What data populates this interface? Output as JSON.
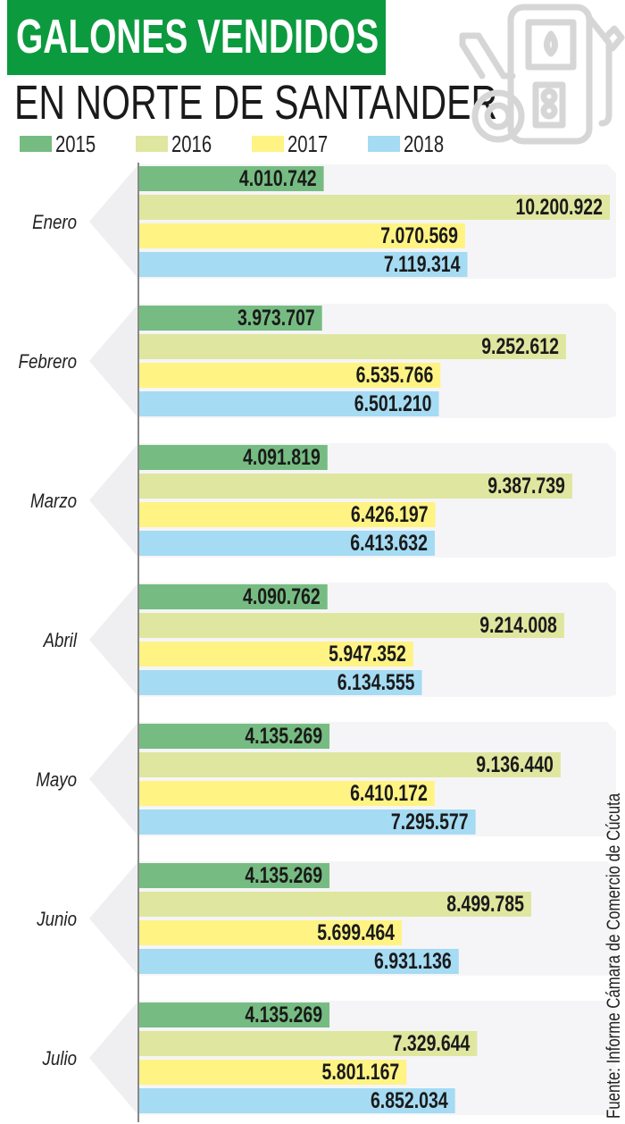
{
  "header": {
    "title": "GALONES VENDIDOS",
    "subtitle": "EN NORTE DE SANTANDER"
  },
  "icon": "gas-pump-icon",
  "source": "Fuente: Informe Cámara de Comercio de Cúcuta",
  "chart_data": {
    "type": "bar",
    "orientation": "horizontal",
    "title": "GALONES VENDIDOS EN NORTE DE SANTANDER",
    "xlabel": "",
    "ylabel": "",
    "legend_position": "top",
    "grid": false,
    "categories": [
      "Enero",
      "Febrero",
      "Marzo",
      "Abril",
      "Mayo",
      "Junio",
      "Julio"
    ],
    "series": [
      {
        "name": "2015",
        "color": "#76bc82",
        "values": [
          4010742,
          3973707,
          4091819,
          4090762,
          4135269,
          4135269,
          4135269
        ],
        "labels": [
          "4.010.742",
          "3.973.707",
          "4.091.819",
          "4.090.762",
          "4.135.269",
          "4.135.269",
          "4.135.269"
        ]
      },
      {
        "name": "2016",
        "color": "#dfe69f",
        "values": [
          10200922,
          9252612,
          9387739,
          9214008,
          9136440,
          8499785,
          7329644
        ],
        "labels": [
          "10.200.922",
          "9.252.612",
          "9.387.739",
          "9.214.008",
          "9.136.440",
          "8.499.785",
          "7.329.644"
        ]
      },
      {
        "name": "2017",
        "color": "#fff384",
        "values": [
          7070569,
          6535766,
          6426197,
          5947352,
          6410172,
          5699464,
          5801167
        ],
        "labels": [
          "7.070.569",
          "6.535.766",
          "6.426.197",
          "5.947.352",
          "6.410.172",
          "5.699.464",
          "5.801.167"
        ]
      },
      {
        "name": "2018",
        "color": "#a5dbf3",
        "values": [
          7119314,
          6501210,
          6413632,
          6134555,
          7295577,
          6931136,
          6852034
        ],
        "labels": [
          "7.119.314",
          "6.501.210",
          "6.413.632",
          "6.134.555",
          "7.295.577",
          "6.931.136",
          "6.852.034"
        ]
      }
    ],
    "xlim": [
      0,
      10200922
    ]
  }
}
